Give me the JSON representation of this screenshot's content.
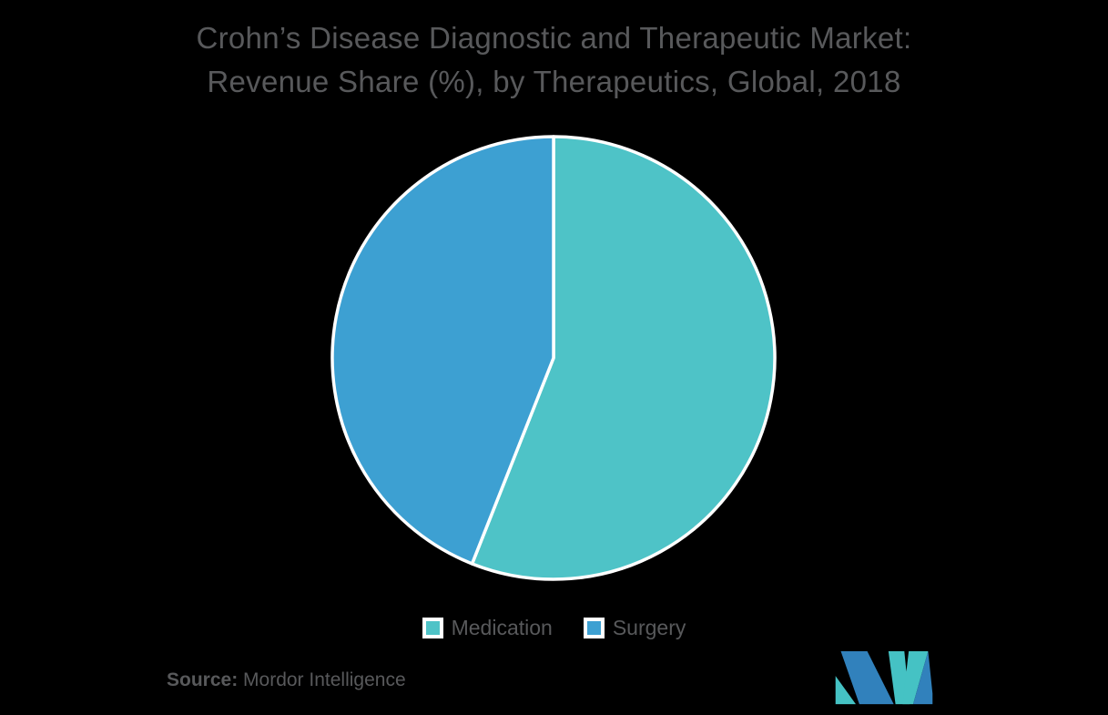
{
  "title": {
    "line1": "Crohn’s Disease Diagnostic and Therapeutic Market:",
    "line2": "Revenue Share (%), by Therapeutics, Global, 2018"
  },
  "chart_data": {
    "type": "pie",
    "title": "Crohn’s Disease Diagnostic and Therapeutic Market: Revenue Share (%), by Therapeutics, Global, 2018",
    "value_unit": "%",
    "slices": [
      {
        "label": "Medication",
        "value": 56,
        "color": "#4EC3C7"
      },
      {
        "label": "Surgery",
        "value": 44,
        "color": "#3DA0D2"
      }
    ],
    "start_angle_deg": -90,
    "direction": "clockwise",
    "divider_color": "#FFFFFF",
    "legend_position": "bottom",
    "data_labels_shown": false
  },
  "legend": {
    "items": [
      {
        "label": "Medication",
        "color": "#4EC3C7"
      },
      {
        "label": "Surgery",
        "color": "#3DA0D2"
      }
    ]
  },
  "source": {
    "label": "Source:",
    "text": "Mordor Intelligence"
  },
  "logo": {
    "name": "mordor-intelligence-logo",
    "teal": "#45C2C4",
    "blue": "#3181BC"
  },
  "colors": {
    "background": "#000000",
    "text": "#58595B",
    "pie_outline": "#FFFFFF"
  }
}
